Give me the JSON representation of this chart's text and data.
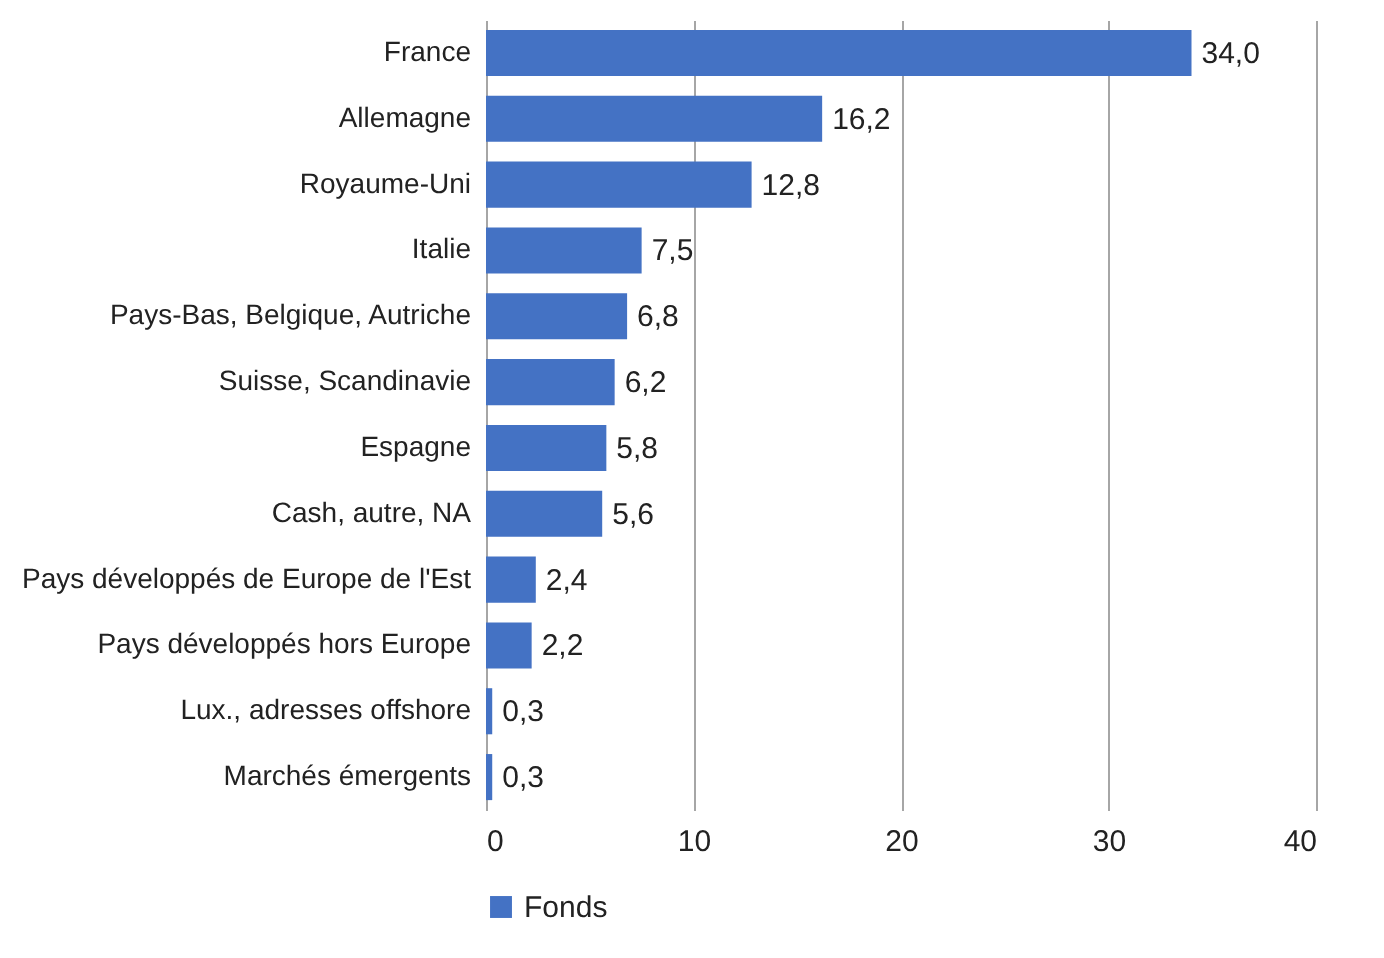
{
  "chart_data": {
    "type": "bar",
    "orientation": "horizontal",
    "categories": [
      "France",
      "Allemagne",
      "Royaume-Uni",
      "Italie",
      "Pays-Bas, Belgique, Autriche",
      "Suisse, Scandinavie",
      "Espagne",
      "Cash, autre, NA",
      "Pays développés de Europe de l'Est",
      "Pays développés hors Europe",
      "Lux., adresses offshore",
      "Marchés émergents"
    ],
    "series": [
      {
        "name": "Fonds",
        "color": "#4472c4",
        "values": [
          34.0,
          16.2,
          12.8,
          7.5,
          6.8,
          6.2,
          5.8,
          5.6,
          2.4,
          2.2,
          0.3,
          0.3
        ],
        "value_labels": [
          "34,0",
          "16,2",
          "12,8",
          "7,5",
          "6,8",
          "6,2",
          "5,8",
          "5,6",
          "2,4",
          "2,2",
          "0,3",
          "0,3"
        ]
      }
    ],
    "xlim": [
      0,
      40
    ],
    "xticks": [
      0,
      10,
      20,
      30,
      40
    ],
    "grid": "x",
    "legend": "bottom"
  }
}
